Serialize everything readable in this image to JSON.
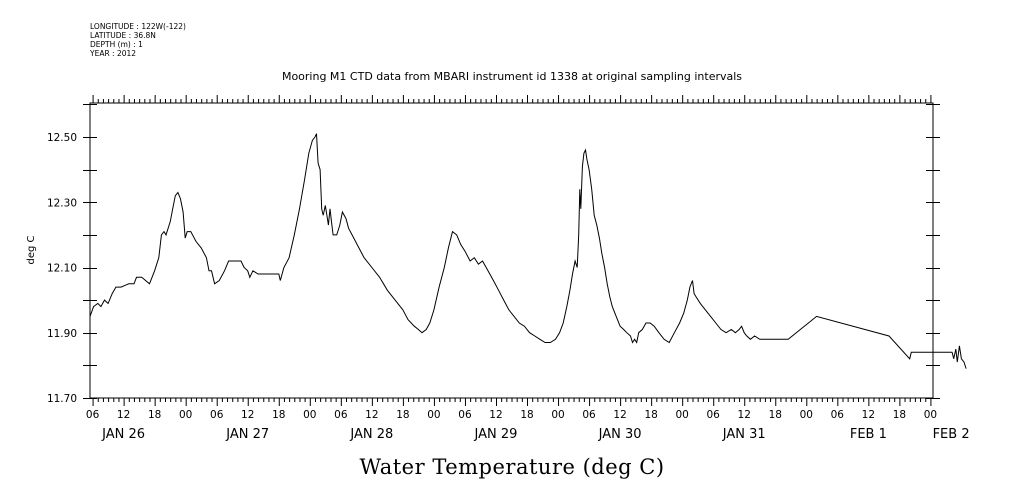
{
  "header_meta": [
    "LONGITUDE : 122W(-122)",
    "LATITUDE : 36.8N",
    "DEPTH (m) : 1",
    "YEAR : 2012"
  ],
  "chart_data": {
    "type": "line",
    "title": "Mooring M1 CTD data from MBARI instrument id 1338 at original sampling intervals",
    "xlabel": "Water Temperature (deg C)",
    "ylabel": "deg C",
    "ylim": [
      11.7,
      12.62
    ],
    "yticks": [
      "11.70",
      "11.90",
      "12.10",
      "12.30",
      "12.50"
    ],
    "x_unit": "hours since 2012-01-26 00:00",
    "xlim": [
      5.5,
      168.5
    ],
    "hour_ticks": [
      {
        "h": 6,
        "label": "06"
      },
      {
        "h": 12,
        "label": "12"
      },
      {
        "h": 18,
        "label": "18"
      },
      {
        "h": 24,
        "label": "00"
      },
      {
        "h": 30,
        "label": "06"
      },
      {
        "h": 36,
        "label": "12"
      },
      {
        "h": 42,
        "label": "18"
      },
      {
        "h": 48,
        "label": "00"
      },
      {
        "h": 54,
        "label": "06"
      },
      {
        "h": 60,
        "label": "12"
      },
      {
        "h": 66,
        "label": "18"
      },
      {
        "h": 72,
        "label": "00"
      },
      {
        "h": 78,
        "label": "06"
      },
      {
        "h": 84,
        "label": "12"
      },
      {
        "h": 90,
        "label": "18"
      },
      {
        "h": 96,
        "label": "00"
      },
      {
        "h": 102,
        "label": "06"
      },
      {
        "h": 108,
        "label": "12"
      },
      {
        "h": 114,
        "label": "18"
      },
      {
        "h": 120,
        "label": "00"
      },
      {
        "h": 126,
        "label": "06"
      },
      {
        "h": 132,
        "label": "12"
      },
      {
        "h": 138,
        "label": "18"
      },
      {
        "h": 144,
        "label": "00"
      },
      {
        "h": 150,
        "label": "06"
      },
      {
        "h": 156,
        "label": "12"
      },
      {
        "h": 162,
        "label": "18"
      },
      {
        "h": 168,
        "label": "00"
      }
    ],
    "date_labels": [
      {
        "h": 12,
        "label": "JAN 26"
      },
      {
        "h": 36,
        "label": "JAN 27"
      },
      {
        "h": 60,
        "label": "JAN 28"
      },
      {
        "h": 84,
        "label": "JAN 29"
      },
      {
        "h": 108,
        "label": "JAN 30"
      },
      {
        "h": 132,
        "label": "JAN 31"
      },
      {
        "h": 156,
        "label": "FEB  1"
      },
      {
        "h": 172,
        "label": "FEB  2"
      }
    ],
    "series": [
      {
        "points": [
          [
            5.5,
            11.95
          ],
          [
            6.2,
            11.98
          ],
          [
            7,
            11.99
          ],
          [
            7.6,
            11.98
          ],
          [
            8.3,
            12.0
          ],
          [
            9,
            11.99
          ],
          [
            9.8,
            12.02
          ],
          [
            10.5,
            12.04
          ],
          [
            11.5,
            12.04
          ],
          [
            13,
            12.05
          ],
          [
            14,
            12.05
          ],
          [
            14.5,
            12.07
          ],
          [
            15.5,
            12.07
          ],
          [
            17,
            12.05
          ],
          [
            18,
            12.09
          ],
          [
            18.8,
            12.13
          ],
          [
            19.3,
            12.2
          ],
          [
            19.8,
            12.21
          ],
          [
            20.2,
            12.2
          ],
          [
            21,
            12.24
          ],
          [
            21.5,
            12.28
          ],
          [
            22,
            12.32
          ],
          [
            22.5,
            12.33
          ],
          [
            23,
            12.31
          ],
          [
            23.5,
            12.27
          ],
          [
            23.9,
            12.19
          ],
          [
            24.3,
            12.21
          ],
          [
            25,
            12.21
          ],
          [
            26,
            12.18
          ],
          [
            27,
            12.16
          ],
          [
            28,
            12.13
          ],
          [
            28.5,
            12.09
          ],
          [
            29,
            12.09
          ],
          [
            29.6,
            12.05
          ],
          [
            30.5,
            12.06
          ],
          [
            31.5,
            12.09
          ],
          [
            32.3,
            12.12
          ],
          [
            33,
            12.12
          ],
          [
            34,
            12.12
          ],
          [
            34.7,
            12.12
          ],
          [
            35.3,
            12.1
          ],
          [
            36,
            12.09
          ],
          [
            36.4,
            12.07
          ],
          [
            37,
            12.09
          ],
          [
            38,
            12.08
          ],
          [
            39.5,
            12.08
          ],
          [
            41,
            12.08
          ],
          [
            42,
            12.08
          ],
          [
            42.3,
            12.06
          ],
          [
            43,
            12.1
          ],
          [
            44,
            12.13
          ],
          [
            45,
            12.2
          ],
          [
            46,
            12.28
          ],
          [
            47,
            12.37
          ],
          [
            47.8,
            12.45
          ],
          [
            48.5,
            12.49
          ],
          [
            49,
            12.5
          ],
          [
            49.3,
            12.51
          ],
          [
            49.6,
            12.42
          ],
          [
            50,
            12.4
          ],
          [
            50.3,
            12.28
          ],
          [
            50.6,
            12.26
          ],
          [
            51,
            12.29
          ],
          [
            51.3,
            12.26
          ],
          [
            51.6,
            12.23
          ],
          [
            51.9,
            12.28
          ],
          [
            52.2,
            12.24
          ],
          [
            52.5,
            12.2
          ],
          [
            53.2,
            12.2
          ],
          [
            53.8,
            12.23
          ],
          [
            54.3,
            12.27
          ],
          [
            55,
            12.25
          ],
          [
            55.5,
            12.22
          ],
          [
            56.5,
            12.19
          ],
          [
            57.5,
            12.16
          ],
          [
            58.5,
            12.13
          ],
          [
            60,
            12.1
          ],
          [
            61.5,
            12.07
          ],
          [
            63,
            12.03
          ],
          [
            64.5,
            12.0
          ],
          [
            66,
            11.97
          ],
          [
            67,
            11.94
          ],
          [
            68.2,
            11.92
          ],
          [
            69,
            11.91
          ],
          [
            69.7,
            11.9
          ],
          [
            70.5,
            11.91
          ],
          [
            71.2,
            11.93
          ],
          [
            72,
            11.97
          ],
          [
            73,
            12.04
          ],
          [
            74,
            12.1
          ],
          [
            74.8,
            12.16
          ],
          [
            75.6,
            12.21
          ],
          [
            76.4,
            12.2
          ],
          [
            77.2,
            12.17
          ],
          [
            78,
            12.15
          ],
          [
            79,
            12.12
          ],
          [
            79.8,
            12.13
          ],
          [
            80.6,
            12.11
          ],
          [
            81.4,
            12.12
          ],
          [
            82.1,
            12.1
          ],
          [
            82.8,
            12.08
          ],
          [
            83.5,
            12.06
          ],
          [
            84.5,
            12.03
          ],
          [
            85.5,
            12.0
          ],
          [
            86.5,
            11.97
          ],
          [
            87.5,
            11.95
          ],
          [
            88.5,
            11.93
          ],
          [
            89.5,
            11.92
          ],
          [
            90.5,
            11.9
          ],
          [
            91.5,
            11.89
          ],
          [
            92.5,
            11.88
          ],
          [
            93.5,
            11.87
          ],
          [
            94.5,
            11.87
          ],
          [
            95.5,
            11.88
          ],
          [
            96.3,
            11.9
          ],
          [
            97,
            11.93
          ],
          [
            97.7,
            11.98
          ],
          [
            98.3,
            12.03
          ],
          [
            98.8,
            12.08
          ],
          [
            99.3,
            12.12
          ],
          [
            99.7,
            12.1
          ],
          [
            100,
            12.2
          ],
          [
            100.2,
            12.34
          ],
          [
            100.4,
            12.28
          ],
          [
            100.7,
            12.41
          ],
          [
            101,
            12.45
          ],
          [
            101.3,
            12.46
          ],
          [
            101.6,
            12.43
          ],
          [
            102,
            12.4
          ],
          [
            102.5,
            12.34
          ],
          [
            103,
            12.26
          ],
          [
            103.5,
            12.23
          ],
          [
            104,
            12.19
          ],
          [
            104.5,
            12.14
          ],
          [
            105,
            12.1
          ],
          [
            105.5,
            12.05
          ],
          [
            106,
            12.01
          ],
          [
            106.5,
            11.98
          ],
          [
            107,
            11.96
          ],
          [
            107.5,
            11.94
          ],
          [
            108,
            11.92
          ],
          [
            108.7,
            11.91
          ],
          [
            109.3,
            11.9
          ],
          [
            110,
            11.89
          ],
          [
            110.4,
            11.87
          ],
          [
            110.8,
            11.88
          ],
          [
            111.2,
            11.87
          ],
          [
            111.6,
            11.9
          ],
          [
            112.3,
            11.91
          ],
          [
            113,
            11.93
          ],
          [
            113.8,
            11.93
          ],
          [
            114.6,
            11.92
          ],
          [
            115.5,
            11.9
          ],
          [
            116.5,
            11.88
          ],
          [
            117.5,
            11.87
          ],
          [
            118.5,
            11.9
          ],
          [
            119.5,
            11.93
          ],
          [
            120.3,
            11.96
          ],
          [
            121,
            12.0
          ],
          [
            121.5,
            12.04
          ],
          [
            122,
            12.06
          ],
          [
            122.3,
            12.02
          ],
          [
            122.7,
            12.01
          ],
          [
            123.5,
            11.99
          ],
          [
            124.5,
            11.97
          ],
          [
            125.5,
            11.95
          ],
          [
            126.5,
            11.93
          ],
          [
            127.5,
            11.91
          ],
          [
            128.5,
            11.9
          ],
          [
            129.5,
            11.91
          ],
          [
            130.3,
            11.9
          ],
          [
            131,
            11.91
          ],
          [
            131.5,
            11.92
          ],
          [
            132,
            11.9
          ],
          [
            132.5,
            11.89
          ],
          [
            133.2,
            11.88
          ],
          [
            134,
            11.89
          ],
          [
            135,
            11.88
          ],
          [
            137,
            11.88
          ],
          [
            139,
            11.88
          ],
          [
            140.5,
            11.88
          ],
          [
            146,
            11.95
          ],
          [
            160,
            11.89
          ],
          [
            164,
            11.82
          ],
          [
            164.3,
            11.84
          ],
          [
            166,
            11.84
          ],
          [
            172.2,
            11.84
          ],
          [
            172.5,
            11.82
          ],
          [
            172.9,
            11.85
          ],
          [
            173.2,
            11.81
          ],
          [
            173.6,
            11.86
          ],
          [
            174,
            11.82
          ],
          [
            174.5,
            11.81
          ],
          [
            174.9,
            11.79
          ]
        ]
      }
    ]
  },
  "grid": false,
  "legend": "none"
}
